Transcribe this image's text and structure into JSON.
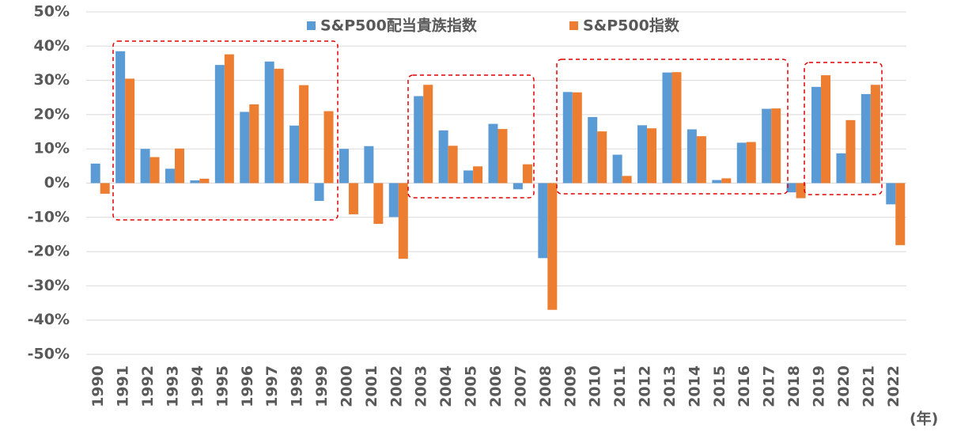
{
  "chart_data": {
    "type": "bar",
    "categories": [
      "1990",
      "1991",
      "1992",
      "1993",
      "1994",
      "1995",
      "1996",
      "1997",
      "1998",
      "1999",
      "2000",
      "2001",
      "2002",
      "2003",
      "2004",
      "2005",
      "2006",
      "2007",
      "2008",
      "2009",
      "2010",
      "2011",
      "2012",
      "2013",
      "2014",
      "2015",
      "2016",
      "2017",
      "2018",
      "2019",
      "2020",
      "2021",
      "2022"
    ],
    "series": [
      {
        "name": "S&P500配当貴族指数",
        "color": "#5b9bd5",
        "values": [
          5.7,
          38.5,
          10.0,
          4.2,
          0.8,
          34.5,
          20.8,
          35.5,
          16.8,
          -5.2,
          10.0,
          10.8,
          -9.9,
          25.4,
          15.4,
          3.7,
          17.3,
          -1.8,
          -21.9,
          26.6,
          19.3,
          8.3,
          16.9,
          32.3,
          15.7,
          0.9,
          11.8,
          21.7,
          -2.7,
          28.1,
          8.7,
          26.0,
          -6.2
        ]
      },
      {
        "name": "S&P500指数",
        "color": "#ed7d31",
        "values": [
          -3.1,
          30.5,
          7.6,
          10.1,
          1.3,
          37.6,
          23.0,
          33.4,
          28.6,
          21.0,
          -9.1,
          -11.9,
          -22.1,
          28.7,
          10.9,
          4.9,
          15.8,
          5.5,
          -37.0,
          26.5,
          15.1,
          2.1,
          16.0,
          32.4,
          13.7,
          1.4,
          12.0,
          21.8,
          -4.4,
          31.5,
          18.4,
          28.7,
          -18.1
        ]
      }
    ],
    "ylim": [
      -50,
      50
    ],
    "yticks": [
      {
        "value": -50,
        "label": "-50%"
      },
      {
        "value": -40,
        "label": "-40%"
      },
      {
        "value": -30,
        "label": "-30%"
      },
      {
        "value": -20,
        "label": "-20%"
      },
      {
        "value": -10,
        "label": "-10%"
      },
      {
        "value": 0,
        "label": "0%"
      },
      {
        "value": 10,
        "label": "10%"
      },
      {
        "value": 20,
        "label": "20%"
      },
      {
        "value": 30,
        "label": "30%"
      },
      {
        "value": 40,
        "label": "40%"
      },
      {
        "value": 50,
        "label": "50%"
      }
    ],
    "x_unit": "(年)",
    "grid": true
  }
}
